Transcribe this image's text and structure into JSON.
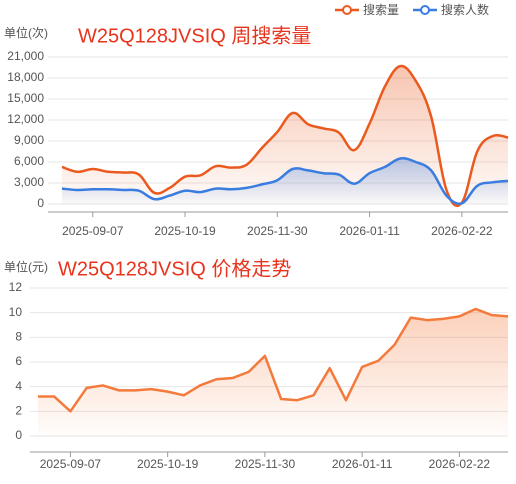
{
  "chart_data": [
    {
      "type": "line",
      "title": "W25Q128JVSIQ 周搜索量",
      "y_unit": "单位(次)",
      "smooth": true,
      "area": true,
      "grid": true,
      "legend": "top-right",
      "categories": [
        null,
        null,
        "2025-09-07",
        null,
        null,
        null,
        null,
        null,
        "2025-10-19",
        null,
        null,
        null,
        null,
        null,
        "2025-11-30",
        null,
        null,
        null,
        null,
        null,
        "2026-01-11",
        null,
        null,
        null,
        null,
        null,
        "2026-02-22",
        null,
        null,
        null
      ],
      "series": [
        {
          "name": "搜索量",
          "color": "#ea5a1e",
          "values": [
            5300,
            4600,
            5000,
            4600,
            4500,
            4200,
            1600,
            2300,
            3900,
            4100,
            5400,
            5200,
            5600,
            8000,
            10300,
            13000,
            11400,
            10800,
            10200,
            7700,
            11500,
            16800,
            19700,
            17600,
            12500,
            2000,
            200,
            7500,
            9700,
            9500
          ]
        },
        {
          "name": "搜索人数",
          "color": "#3a7de0",
          "values": [
            2200,
            2000,
            2100,
            2100,
            2000,
            1900,
            700,
            1200,
            1900,
            1700,
            2200,
            2100,
            2300,
            2800,
            3400,
            5000,
            4800,
            4400,
            4200,
            2900,
            4400,
            5300,
            6500,
            6000,
            4800,
            1200,
            100,
            2600,
            3100,
            3300
          ]
        }
      ],
      "ylim": [
        0,
        21000
      ],
      "yticks": [
        0,
        {
          "value": 3000,
          "label": "3,000"
        },
        {
          "value": 6000,
          "label": "6,000"
        },
        {
          "value": 9000,
          "label": "9,000"
        },
        {
          "value": 12000,
          "label": "12,000"
        },
        {
          "value": 15000,
          "label": "15,000"
        },
        {
          "value": 18000,
          "label": "18,000"
        },
        {
          "value": 21000,
          "label": "21,000"
        }
      ]
    },
    {
      "type": "line",
      "title": "W25Q128JVSIQ 价格走势",
      "y_unit": "单位(元)",
      "smooth": false,
      "area": true,
      "grid": true,
      "categories": [
        null,
        null,
        "2025-09-07",
        null,
        null,
        null,
        null,
        null,
        "2025-10-19",
        null,
        null,
        null,
        null,
        null,
        "2025-11-30",
        null,
        null,
        null,
        null,
        null,
        "2026-01-11",
        null,
        null,
        null,
        null,
        null,
        "2026-02-22",
        null,
        null,
        null
      ],
      "values": [
        3.2,
        3.2,
        2.0,
        3.9,
        4.1,
        3.7,
        3.7,
        3.8,
        3.6,
        3.3,
        4.1,
        4.6,
        4.7,
        5.2,
        6.5,
        3.0,
        2.9,
        3.3,
        5.5,
        2.9,
        5.6,
        6.1,
        7.4,
        9.6,
        9.4,
        9.5,
        9.7,
        10.3,
        9.8,
        9.7
      ],
      "color": "#f47a3c",
      "ylim": [
        0,
        12
      ],
      "yticks": [
        0,
        2,
        4,
        6,
        8,
        10,
        12
      ]
    }
  ]
}
